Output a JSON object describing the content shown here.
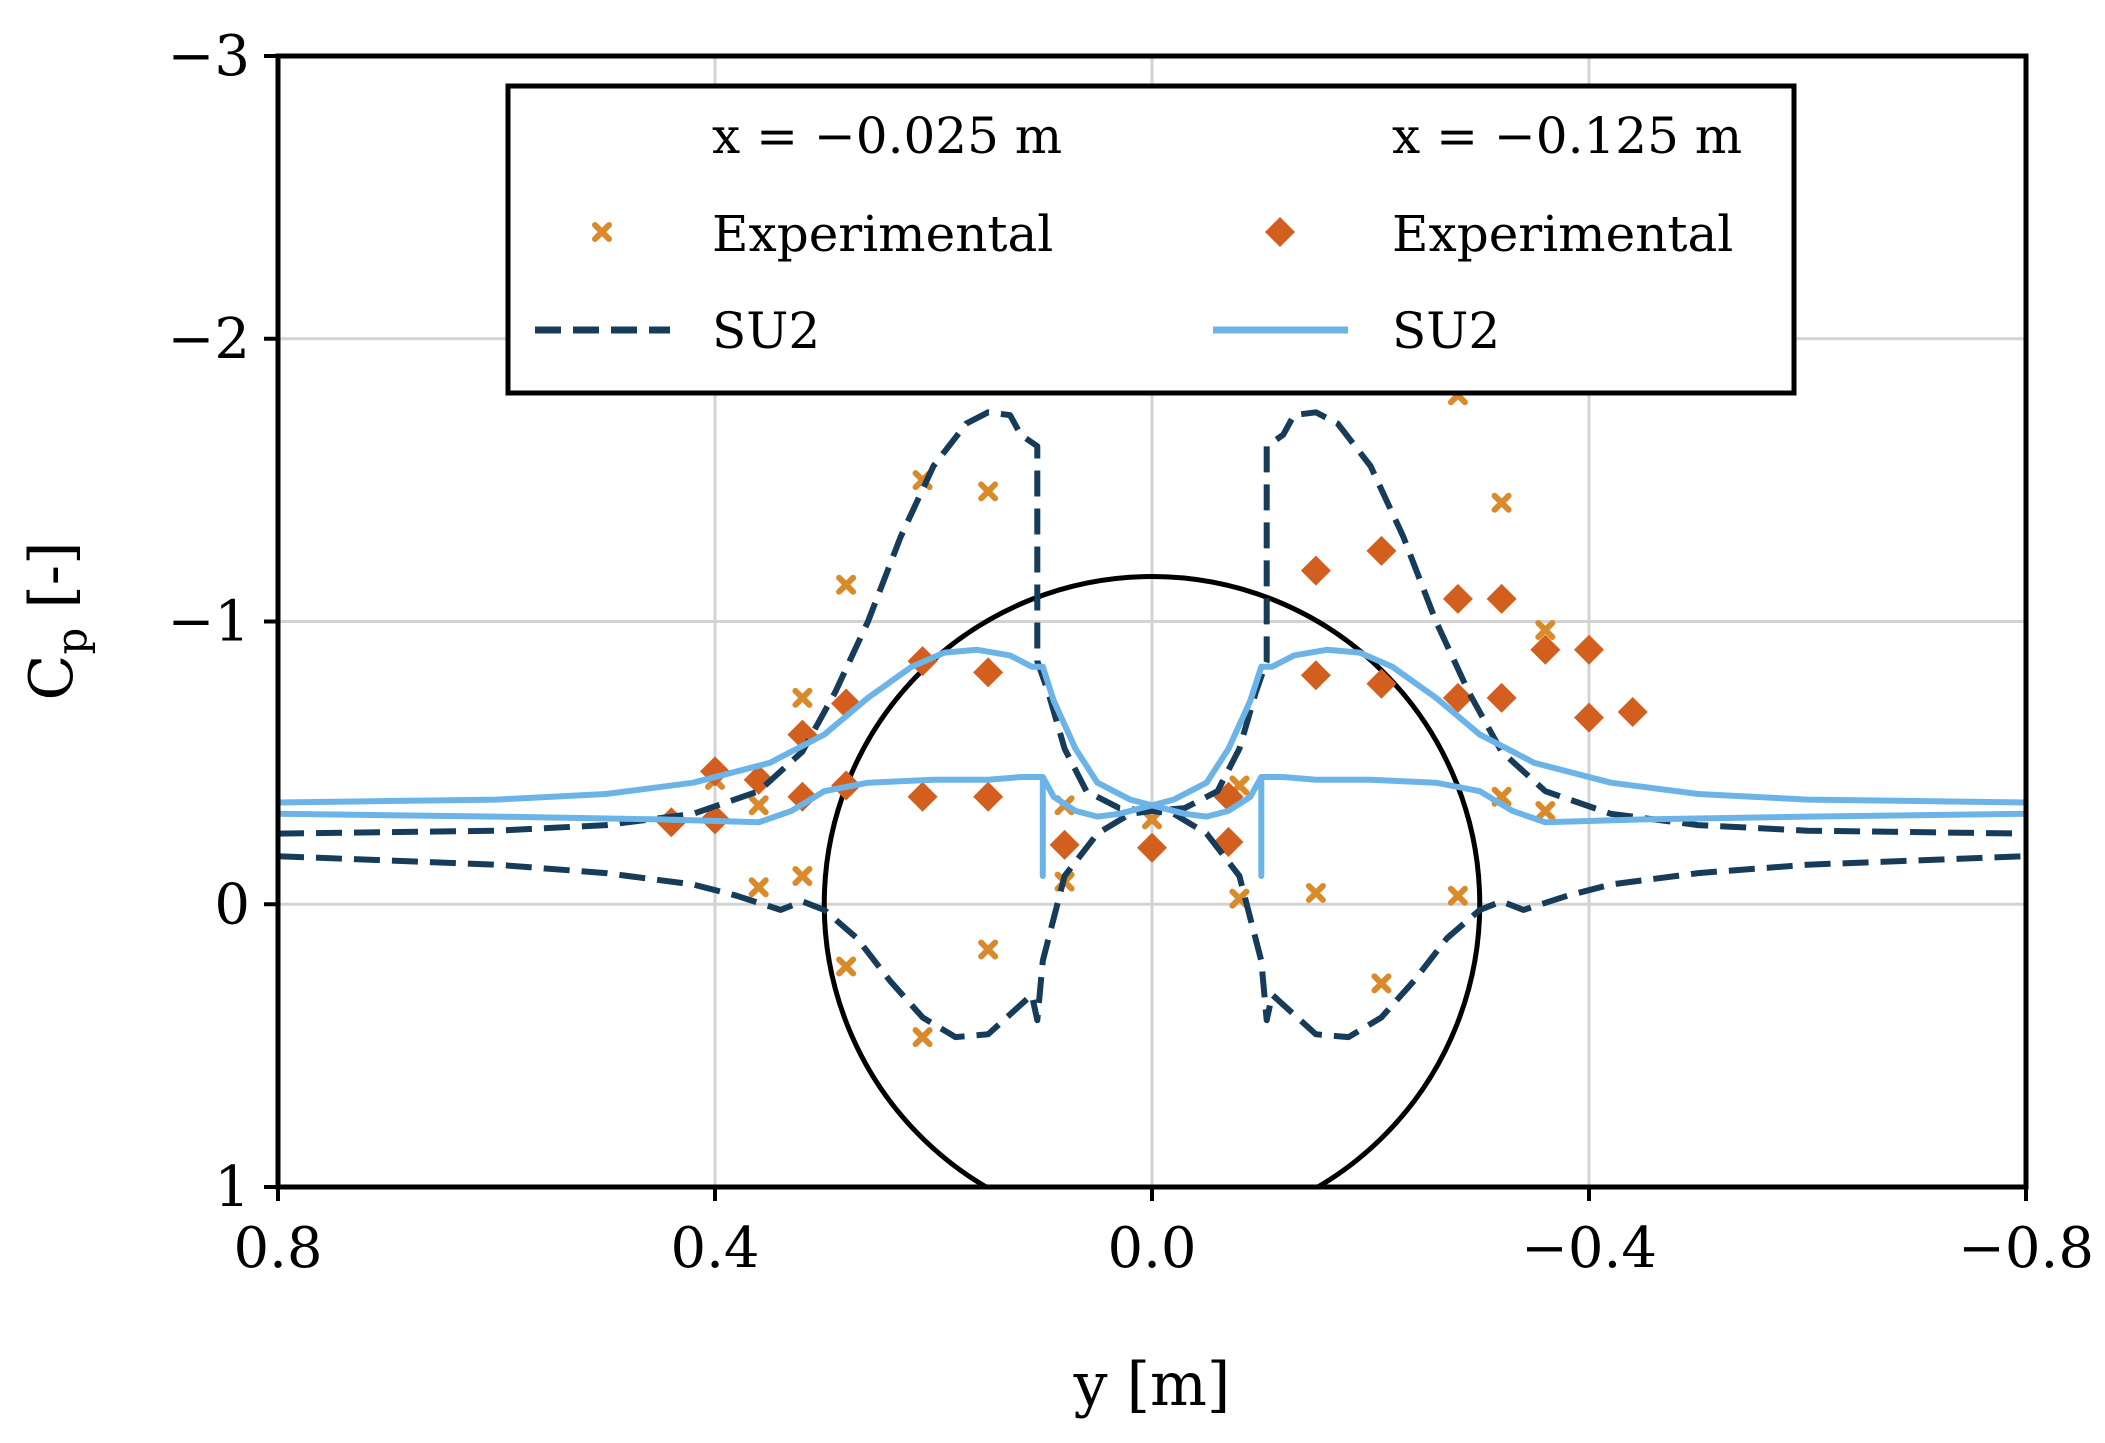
{
  "chart_data": {
    "type": "line",
    "title": "",
    "xlabel": "y [m]",
    "ylabel_main": "C",
    "ylabel_sub": "p",
    "ylabel_unit": " [-]",
    "xlim": [
      0.8,
      -0.8
    ],
    "ylim": [
      1,
      -3
    ],
    "xticks": [
      0.8,
      0.4,
      0.0,
      -0.4,
      -0.8
    ],
    "xtick_labels": [
      "0.8",
      "0.4",
      "0.0",
      "−0.4",
      "−0.8"
    ],
    "yticks": [
      -3,
      -2,
      -1,
      0,
      1
    ],
    "ytick_labels": [
      "−3",
      "−2",
      "−1",
      "0",
      "1"
    ],
    "grid": true,
    "legend": {
      "placement": "top-center",
      "col1_title": "x = −0.025 m",
      "col2_title": "x = −0.125 m",
      "entries": [
        {
          "label": "Experimental",
          "series": "exp_0025",
          "marker": "x"
        },
        {
          "label": "Experimental",
          "series": "exp_0125",
          "marker": "diamond"
        },
        {
          "label": "SU2",
          "series": "su2_0025",
          "style": "dashed"
        },
        {
          "label": "SU2",
          "series": "su2_0125",
          "style": "solid"
        }
      ]
    },
    "colors": {
      "exp_0025": "#d98a2b",
      "exp_0125": "#d35f1f",
      "su2_0025": "#163c5a",
      "su2_0125": "#6cb4e8",
      "circle": "#000000",
      "grid": "#d3d3d3"
    },
    "circle": {
      "center_y": 0.0,
      "center_cp": -0.0,
      "radius_y": 0.3,
      "description": "cylinder cross-section"
    },
    "series": [
      {
        "name": "Experimental (x = −0.025 m)",
        "key": "exp_0025",
        "points": [
          [
            0.28,
            -1.13
          ],
          [
            0.32,
            -0.73
          ],
          [
            0.36,
            -0.35
          ],
          [
            0.4,
            -0.44
          ],
          [
            0.36,
            -0.06
          ],
          [
            0.32,
            -0.1
          ],
          [
            0.28,
            0.22
          ],
          [
            0.21,
            0.47
          ],
          [
            0.21,
            -1.5
          ],
          [
            0.15,
            -1.46
          ],
          [
            0.15,
            0.16
          ],
          [
            0.08,
            -0.35
          ],
          [
            0.08,
            -0.08
          ],
          [
            0.0,
            -0.3
          ],
          [
            -0.08,
            -0.42
          ],
          [
            -0.08,
            -0.02
          ],
          [
            -0.15,
            -0.04
          ],
          [
            -0.21,
            0.28
          ],
          [
            -0.28,
            -0.03
          ],
          [
            -0.28,
            -1.8
          ],
          [
            -0.32,
            -1.42
          ],
          [
            -0.32,
            -0.38
          ],
          [
            -0.36,
            -0.97
          ],
          [
            -0.36,
            -0.33
          ]
        ]
      },
      {
        "name": "Experimental (x = −0.125 m)",
        "key": "exp_0125",
        "points": [
          [
            0.44,
            -0.29
          ],
          [
            0.4,
            -0.3
          ],
          [
            0.4,
            -0.47
          ],
          [
            0.36,
            -0.44
          ],
          [
            0.32,
            -0.6
          ],
          [
            0.32,
            -0.38
          ],
          [
            0.28,
            -0.71
          ],
          [
            0.28,
            -0.42
          ],
          [
            0.21,
            -0.86
          ],
          [
            0.21,
            -0.38
          ],
          [
            0.15,
            -0.82
          ],
          [
            0.15,
            -0.38
          ],
          [
            0.08,
            -0.21
          ],
          [
            0.0,
            -0.2
          ],
          [
            -0.07,
            -0.22
          ],
          [
            -0.07,
            -0.38
          ],
          [
            -0.15,
            -1.18
          ],
          [
            -0.15,
            -0.81
          ],
          [
            -0.21,
            -1.25
          ],
          [
            -0.21,
            -0.78
          ],
          [
            -0.28,
            -1.08
          ],
          [
            -0.28,
            -0.73
          ],
          [
            -0.32,
            -1.08
          ],
          [
            -0.32,
            -0.73
          ],
          [
            -0.36,
            -0.9
          ],
          [
            -0.4,
            -0.9
          ],
          [
            -0.4,
            -0.66
          ],
          [
            -0.44,
            -0.68
          ]
        ]
      },
      {
        "name": "SU2 (x = −0.025 m)",
        "key": "su2_0025",
        "style": "dashed",
        "segments": [
          [
            [
              0.8,
              -0.25
            ],
            [
              0.6,
              -0.26
            ],
            [
              0.5,
              -0.28
            ],
            [
              0.42,
              -0.32
            ],
            [
              0.36,
              -0.4
            ],
            [
              0.32,
              -0.54
            ],
            [
              0.29,
              -0.75
            ],
            [
              0.26,
              -1.0
            ],
            [
              0.23,
              -1.3
            ],
            [
              0.2,
              -1.55
            ],
            [
              0.17,
              -1.7
            ],
            [
              0.15,
              -1.74
            ],
            [
              0.13,
              -1.73
            ],
            [
              0.12,
              -1.66
            ],
            [
              0.105,
              -1.62
            ],
            [
              0.105,
              -0.86
            ],
            [
              0.095,
              -0.75
            ],
            [
              0.08,
              -0.55
            ],
            [
              0.06,
              -0.4
            ],
            [
              0.03,
              -0.34
            ],
            [
              0.0,
              -0.33
            ],
            [
              -0.03,
              -0.34
            ],
            [
              -0.06,
              -0.4
            ],
            [
              -0.08,
              -0.55
            ],
            [
              -0.095,
              -0.75
            ],
            [
              -0.105,
              -0.86
            ],
            [
              -0.105,
              -1.62
            ],
            [
              -0.12,
              -1.66
            ],
            [
              -0.13,
              -1.73
            ],
            [
              -0.15,
              -1.74
            ],
            [
              -0.17,
              -1.7
            ],
            [
              -0.2,
              -1.55
            ],
            [
              -0.23,
              -1.3
            ],
            [
              -0.26,
              -1.0
            ],
            [
              -0.29,
              -0.75
            ],
            [
              -0.32,
              -0.54
            ],
            [
              -0.36,
              -0.4
            ],
            [
              -0.42,
              -0.32
            ],
            [
              -0.5,
              -0.28
            ],
            [
              -0.6,
              -0.26
            ],
            [
              -0.8,
              -0.25
            ]
          ],
          [
            [
              0.8,
              -0.17
            ],
            [
              0.6,
              -0.14
            ],
            [
              0.5,
              -0.11
            ],
            [
              0.42,
              -0.07
            ],
            [
              0.38,
              -0.03
            ],
            [
              0.34,
              0.02
            ],
            [
              0.32,
              -0.01
            ],
            [
              0.3,
              0.02
            ],
            [
              0.27,
              0.12
            ],
            [
              0.24,
              0.27
            ],
            [
              0.21,
              0.4
            ],
            [
              0.18,
              0.47
            ],
            [
              0.15,
              0.46
            ],
            [
              0.13,
              0.39
            ],
            [
              0.11,
              0.32
            ],
            [
              0.105,
              0.41
            ],
            [
              0.1,
              0.2
            ],
            [
              0.08,
              -0.1
            ],
            [
              0.05,
              -0.25
            ],
            [
              0.02,
              -0.32
            ],
            [
              0.0,
              -0.33
            ],
            [
              -0.02,
              -0.32
            ],
            [
              -0.05,
              -0.25
            ],
            [
              -0.08,
              -0.1
            ],
            [
              -0.1,
              0.2
            ],
            [
              -0.105,
              0.41
            ],
            [
              -0.11,
              0.32
            ],
            [
              -0.13,
              0.39
            ],
            [
              -0.15,
              0.46
            ],
            [
              -0.18,
              0.47
            ],
            [
              -0.21,
              0.4
            ],
            [
              -0.24,
              0.27
            ],
            [
              -0.27,
              0.12
            ],
            [
              -0.3,
              0.02
            ],
            [
              -0.32,
              -0.01
            ],
            [
              -0.34,
              0.02
            ],
            [
              -0.38,
              -0.03
            ],
            [
              -0.42,
              -0.07
            ],
            [
              -0.5,
              -0.11
            ],
            [
              -0.6,
              -0.14
            ],
            [
              -0.8,
              -0.17
            ]
          ]
        ]
      },
      {
        "name": "SU2 (x = −0.125 m)",
        "key": "su2_0125",
        "style": "solid",
        "segments": [
          [
            [
              0.8,
              -0.36
            ],
            [
              0.6,
              -0.37
            ],
            [
              0.5,
              -0.39
            ],
            [
              0.42,
              -0.43
            ],
            [
              0.35,
              -0.5
            ],
            [
              0.3,
              -0.6
            ],
            [
              0.26,
              -0.73
            ],
            [
              0.22,
              -0.84
            ],
            [
              0.19,
              -0.89
            ],
            [
              0.16,
              -0.9
            ],
            [
              0.13,
              -0.88
            ],
            [
              0.11,
              -0.84
            ],
            [
              0.1,
              -0.84
            ],
            [
              0.09,
              -0.72
            ],
            [
              0.07,
              -0.55
            ],
            [
              0.05,
              -0.43
            ],
            [
              0.02,
              -0.37
            ],
            [
              0.0,
              -0.35
            ],
            [
              -0.02,
              -0.37
            ],
            [
              -0.05,
              -0.43
            ],
            [
              -0.07,
              -0.55
            ],
            [
              -0.09,
              -0.72
            ],
            [
              -0.1,
              -0.84
            ],
            [
              -0.11,
              -0.84
            ],
            [
              -0.13,
              -0.88
            ],
            [
              -0.16,
              -0.9
            ],
            [
              -0.19,
              -0.89
            ],
            [
              -0.22,
              -0.84
            ],
            [
              -0.26,
              -0.73
            ],
            [
              -0.3,
              -0.6
            ],
            [
              -0.35,
              -0.5
            ],
            [
              -0.42,
              -0.43
            ],
            [
              -0.5,
              -0.39
            ],
            [
              -0.6,
              -0.37
            ],
            [
              -0.8,
              -0.36
            ]
          ],
          [
            [
              0.8,
              -0.32
            ],
            [
              0.6,
              -0.31
            ],
            [
              0.45,
              -0.3
            ],
            [
              0.36,
              -0.29
            ],
            [
              0.33,
              -0.33
            ],
            [
              0.3,
              -0.4
            ],
            [
              0.26,
              -0.43
            ],
            [
              0.2,
              -0.44
            ],
            [
              0.15,
              -0.44
            ],
            [
              0.12,
              -0.45
            ],
            [
              0.105,
              -0.45
            ],
            [
              0.1,
              -0.45
            ],
            [
              0.1,
              -0.1
            ],
            [
              0.1,
              -0.45
            ],
            [
              0.09,
              -0.38
            ],
            [
              0.07,
              -0.33
            ],
            [
              0.05,
              -0.31
            ],
            [
              0.03,
              -0.32
            ],
            [
              0.0,
              -0.35
            ],
            [
              -0.03,
              -0.32
            ],
            [
              -0.05,
              -0.31
            ],
            [
              -0.07,
              -0.33
            ],
            [
              -0.09,
              -0.38
            ],
            [
              -0.1,
              -0.45
            ],
            [
              -0.1,
              -0.1
            ],
            [
              -0.1,
              -0.45
            ],
            [
              -0.105,
              -0.45
            ],
            [
              -0.12,
              -0.45
            ],
            [
              -0.15,
              -0.44
            ],
            [
              -0.2,
              -0.44
            ],
            [
              -0.26,
              -0.43
            ],
            [
              -0.3,
              -0.4
            ],
            [
              -0.33,
              -0.33
            ],
            [
              -0.36,
              -0.29
            ],
            [
              -0.45,
              -0.3
            ],
            [
              -0.6,
              -0.31
            ],
            [
              -0.8,
              -0.32
            ]
          ]
        ]
      }
    ]
  }
}
